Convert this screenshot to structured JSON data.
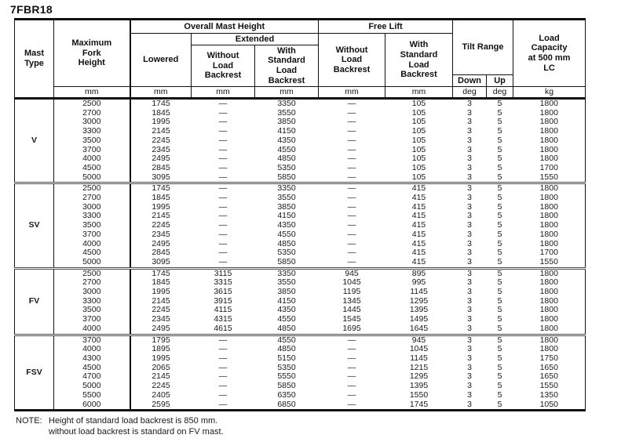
{
  "title": "7FBR18",
  "colors": {
    "text": "#1a1a1a",
    "line": "#111111",
    "background": "#ffffff"
  },
  "table": {
    "headers": {
      "mast_type": "Mast\nType",
      "max_fork_height": "Maximum\nFork\nHeight",
      "overall_mast_height": "Overall Mast Height",
      "extended": "Extended",
      "lowered": "Lowered",
      "ext_without_load_backrest": "Without\nLoad\nBackrest",
      "ext_with_standard_load_backrest": "With\nStandard\nLoad\nBackrest",
      "free_lift": "Free Lift",
      "fl_without_load_backrest": "Without\nLoad\nBackrest",
      "fl_with_standard_load_backrest": "With\nStandard\nLoad\nBackrest",
      "tilt_range": "Tilt Range",
      "down": "Down",
      "up": "Up",
      "load_capacity": "Load\nCapacity\nat 500 mm\nLC"
    },
    "units": [
      "mm",
      "mm",
      "mm",
      "mm",
      "mm",
      "mm",
      "deg",
      "deg",
      "kg"
    ],
    "columns_order": [
      "max_fork_height",
      "lowered",
      "ext_without_load_backrest",
      "ext_with_standard_load_backrest",
      "fl_without_load_backrest",
      "fl_with_standard_load_backrest",
      "tilt_down",
      "tilt_up",
      "load_capacity"
    ],
    "sections": [
      {
        "mast_type": "V",
        "rows": [
          [
            "2500",
            "1745",
            "—",
            "3350",
            "—",
            "105",
            "3",
            "5",
            "1800"
          ],
          [
            "2700",
            "1845",
            "—",
            "3550",
            "—",
            "105",
            "3",
            "5",
            "1800"
          ],
          [
            "3000",
            "1995",
            "—",
            "3850",
            "—",
            "105",
            "3",
            "5",
            "1800"
          ],
          [
            "3300",
            "2145",
            "—",
            "4150",
            "—",
            "105",
            "3",
            "5",
            "1800"
          ],
          [
            "3500",
            "2245",
            "—",
            "4350",
            "—",
            "105",
            "3",
            "5",
            "1800"
          ],
          [
            "3700",
            "2345",
            "—",
            "4550",
            "—",
            "105",
            "3",
            "5",
            "1800"
          ],
          [
            "4000",
            "2495",
            "—",
            "4850",
            "—",
            "105",
            "3",
            "5",
            "1800"
          ],
          [
            "4500",
            "2845",
            "—",
            "5350",
            "—",
            "105",
            "3",
            "5",
            "1700"
          ],
          [
            "5000",
            "3095",
            "—",
            "5850",
            "—",
            "105",
            "3",
            "5",
            "1550"
          ]
        ]
      },
      {
        "mast_type": "SV",
        "rows": [
          [
            "2500",
            "1745",
            "—",
            "3350",
            "—",
            "415",
            "3",
            "5",
            "1800"
          ],
          [
            "2700",
            "1845",
            "—",
            "3550",
            "—",
            "415",
            "3",
            "5",
            "1800"
          ],
          [
            "3000",
            "1995",
            "—",
            "3850",
            "—",
            "415",
            "3",
            "5",
            "1800"
          ],
          [
            "3300",
            "2145",
            "—",
            "4150",
            "—",
            "415",
            "3",
            "5",
            "1800"
          ],
          [
            "3500",
            "2245",
            "—",
            "4350",
            "—",
            "415",
            "3",
            "5",
            "1800"
          ],
          [
            "3700",
            "2345",
            "—",
            "4550",
            "—",
            "415",
            "3",
            "5",
            "1800"
          ],
          [
            "4000",
            "2495",
            "—",
            "4850",
            "—",
            "415",
            "3",
            "5",
            "1800"
          ],
          [
            "4500",
            "2845",
            "—",
            "5350",
            "—",
            "415",
            "3",
            "5",
            "1700"
          ],
          [
            "5000",
            "3095",
            "—",
            "5850",
            "—",
            "415",
            "3",
            "5",
            "1550"
          ]
        ]
      },
      {
        "mast_type": "FV",
        "rows": [
          [
            "2500",
            "1745",
            "3115",
            "3350",
            "945",
            "895",
            "3",
            "5",
            "1800"
          ],
          [
            "2700",
            "1845",
            "3315",
            "3550",
            "1045",
            "995",
            "3",
            "5",
            "1800"
          ],
          [
            "3000",
            "1995",
            "3615",
            "3850",
            "1195",
            "1145",
            "3",
            "5",
            "1800"
          ],
          [
            "3300",
            "2145",
            "3915",
            "4150",
            "1345",
            "1295",
            "3",
            "5",
            "1800"
          ],
          [
            "3500",
            "2245",
            "4115",
            "4350",
            "1445",
            "1395",
            "3",
            "5",
            "1800"
          ],
          [
            "3700",
            "2345",
            "4315",
            "4550",
            "1545",
            "1495",
            "3",
            "5",
            "1800"
          ],
          [
            "4000",
            "2495",
            "4615",
            "4850",
            "1695",
            "1645",
            "3",
            "5",
            "1800"
          ]
        ]
      },
      {
        "mast_type": "FSV",
        "rows": [
          [
            "3700",
            "1795",
            "—",
            "4550",
            "—",
            "945",
            "3",
            "5",
            "1800"
          ],
          [
            "4000",
            "1895",
            "—",
            "4850",
            "—",
            "1045",
            "3",
            "5",
            "1800"
          ],
          [
            "4300",
            "1995",
            "—",
            "5150",
            "—",
            "1145",
            "3",
            "5",
            "1750"
          ],
          [
            "4500",
            "2065",
            "—",
            "5350",
            "—",
            "1215",
            "3",
            "5",
            "1650"
          ],
          [
            "4700",
            "2145",
            "—",
            "5550",
            "—",
            "1295",
            "3",
            "5",
            "1650"
          ],
          [
            "5000",
            "2245",
            "—",
            "5850",
            "—",
            "1395",
            "3",
            "5",
            "1550"
          ],
          [
            "5500",
            "2405",
            "—",
            "6350",
            "—",
            "1550",
            "3",
            "5",
            "1350"
          ],
          [
            "6000",
            "2595",
            "—",
            "6850",
            "—",
            "1745",
            "3",
            "5",
            "1050"
          ]
        ]
      }
    ]
  },
  "note": {
    "label": "NOTE:",
    "text": "Height of standard load backrest is 850 mm.\nwithout load backrest is standard on FV mast."
  }
}
